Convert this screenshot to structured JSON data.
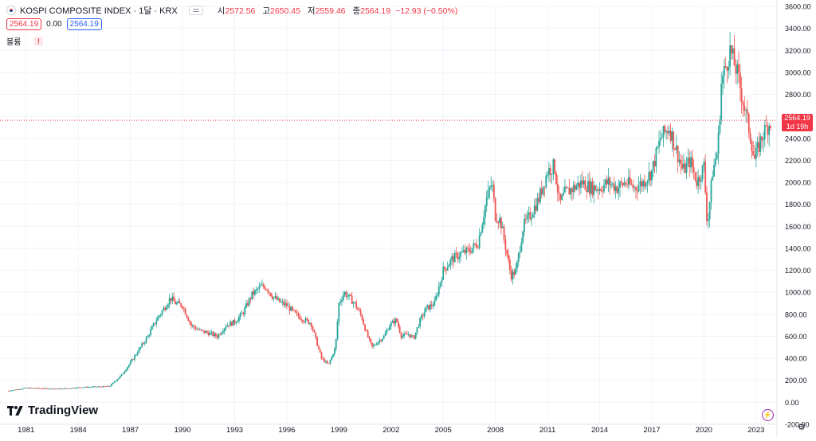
{
  "header": {
    "title": "KOSPI COMPOSITE INDEX · 1달 · KRX",
    "ohlc": [
      {
        "label": "시",
        "value": "2572.56"
      },
      {
        "label": "고",
        "value": "2650.45"
      },
      {
        "label": "저",
        "value": "2559.46"
      },
      {
        "label": "종",
        "value": "2564.19"
      }
    ],
    "change": "−12.93 (−0.50%)"
  },
  "row2": {
    "bid": "2564.19",
    "spread": "0.00",
    "ask": "2564.19"
  },
  "volume_label": "볼륨",
  "warning_icon": "!",
  "price_label": {
    "price": "2564.19",
    "countdown": "1d 19h"
  },
  "logo_text": "TradingView",
  "bolt_icon": "⚡",
  "gear_icon": "⚙",
  "colors": {
    "up": "#26a69a",
    "down": "#ef5350",
    "grid": "#f0f3fa",
    "price_line": "#f23645"
  },
  "chart_data": {
    "type": "candlestick",
    "title": "KOSPI COMPOSITE INDEX · 1달 · KRX",
    "xlabel": "",
    "ylabel": "",
    "ylim": [
      -200,
      3600
    ],
    "xlim": [
      1979.5,
      2024.2
    ],
    "y_ticks": [
      "-200.00",
      "0.00",
      "200.00",
      "400.00",
      "600.00",
      "800.00",
      "1000.00",
      "1200.00",
      "1400.00",
      "1600.00",
      "1800.00",
      "2000.00",
      "2200.00",
      "2400.00",
      "2600.00",
      "2800.00",
      "3000.00",
      "3200.00",
      "3400.00",
      "3600.00"
    ],
    "x_ticks": [
      "1981",
      "1984",
      "1987",
      "1990",
      "1993",
      "1996",
      "1999",
      "2002",
      "2005",
      "2008",
      "2011",
      "2014",
      "2017",
      "2020",
      "2023"
    ],
    "last_price": 2564.19,
    "grid": true,
    "series": [
      {
        "x": [
          1980.0,
          1981.0,
          1982.0,
          1983.0,
          1984.0,
          1985.0,
          1985.8,
          1986.5,
          1987.0,
          1987.5,
          1988.0,
          1988.5,
          1989.0,
          1989.3,
          1989.6,
          1990.0,
          1990.5,
          1991.0,
          1991.5,
          1992.0,
          1992.5,
          1993.0,
          1993.5,
          1994.0,
          1994.5,
          1994.8,
          1995.2,
          1995.6,
          1996.0,
          1996.5,
          1997.0,
          1997.4,
          1997.8,
          1998.0,
          1998.4,
          1998.8,
          1999.0,
          1999.3,
          1999.6,
          1999.9,
          2000.3,
          2000.6,
          2000.9,
          2001.3,
          2001.6,
          2001.9,
          2002.3,
          2002.6,
          2003.0,
          2003.3,
          2003.6,
          2004.0,
          2004.5,
          2005.0,
          2005.5,
          2006.0,
          2006.5,
          2007.0,
          2007.5,
          2007.8,
          2008.0,
          2008.3,
          2008.6,
          2008.9,
          2009.2,
          2009.6,
          2010.0,
          2010.5,
          2011.0,
          2011.4,
          2011.7,
          2012.0,
          2012.5,
          2013.0,
          2013.5,
          2014.0,
          2014.5,
          2015.0,
          2015.5,
          2016.0,
          2016.5,
          2017.0,
          2017.5,
          2018.0,
          2018.4,
          2018.8,
          2019.2,
          2019.6,
          2020.0,
          2020.2,
          2020.5,
          2020.8,
          2021.0,
          2021.5,
          2021.9,
          2022.3,
          2022.7,
          2022.9,
          2023.3,
          2023.6,
          2023.9
        ],
        "values": [
          105,
          130,
          125,
          122,
          135,
          140,
          145,
          250,
          360,
          480,
          600,
          750,
          870,
          950,
          900,
          880,
          700,
          650,
          630,
          600,
          700,
          730,
          820,
          980,
          1050,
          1050,
          960,
          910,
          880,
          800,
          750,
          720,
          500,
          400,
          340,
          500,
          900,
          1000,
          950,
          900,
          780,
          620,
          500,
          560,
          600,
          700,
          750,
          600,
          620,
          580,
          720,
          850,
          900,
          1200,
          1300,
          1350,
          1380,
          1450,
          1850,
          2000,
          1700,
          1650,
          1400,
          1150,
          1200,
          1600,
          1700,
          1850,
          2100,
          2150,
          1800,
          1900,
          1950,
          2000,
          1950,
          1950,
          2000,
          1950,
          2000,
          1950,
          2000,
          2100,
          2400,
          2500,
          2300,
          2100,
          2200,
          2000,
          2150,
          1600,
          2100,
          2300,
          2900,
          3200,
          3000,
          2700,
          2400,
          2200,
          2400,
          2500,
          2564.19
        ]
      }
    ]
  }
}
